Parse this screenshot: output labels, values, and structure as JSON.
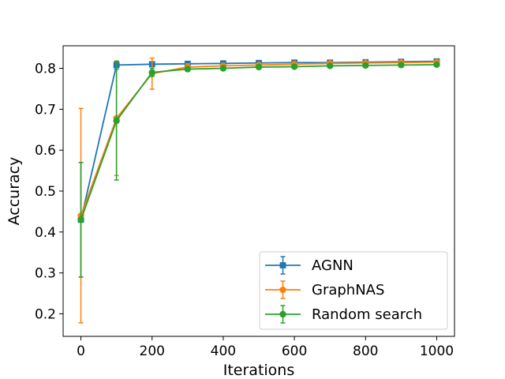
{
  "chart_data": {
    "type": "line",
    "title": "",
    "xlabel": "Iterations",
    "ylabel": "Accuracy",
    "xlim": [
      -50,
      1050
    ],
    "ylim": [
      0.145,
      0.855
    ],
    "xticks": [
      0,
      200,
      400,
      600,
      800,
      1000
    ],
    "yticks": [
      0.2,
      0.3,
      0.4,
      0.5,
      0.6,
      0.7,
      0.8
    ],
    "grid": false,
    "legend_position": "lower-right",
    "x": [
      0,
      100,
      200,
      300,
      400,
      500,
      600,
      700,
      800,
      900,
      1000
    ],
    "series": [
      {
        "name": "AGNN",
        "color": "#1f77b4",
        "marker": "square",
        "values": [
          0.43,
          0.808,
          0.81,
          0.811,
          0.812,
          0.813,
          0.814,
          0.814,
          0.815,
          0.816,
          0.817
        ],
        "errors": [
          0.14,
          0.01,
          0.004,
          0.004,
          0.004,
          0.004,
          0.004,
          0.004,
          0.004,
          0.004,
          0.004
        ]
      },
      {
        "name": "GraphNAS",
        "color": "#ff7f0e",
        "marker": "pentagon",
        "values": [
          0.44,
          0.678,
          0.787,
          0.803,
          0.806,
          0.808,
          0.81,
          0.812,
          0.813,
          0.814,
          0.815
        ],
        "errors": [
          0.262,
          0.14,
          0.038,
          0.008,
          0.006,
          0.005,
          0.005,
          0.004,
          0.004,
          0.004,
          0.004
        ]
      },
      {
        "name": "Random search",
        "color": "#2ca02c",
        "marker": "circle",
        "values": [
          0.43,
          0.672,
          0.79,
          0.798,
          0.8,
          0.803,
          0.804,
          0.806,
          0.807,
          0.808,
          0.809
        ],
        "errors": [
          0.14,
          0.145,
          0.01,
          0.005,
          0.005,
          0.005,
          0.004,
          0.004,
          0.004,
          0.004,
          0.004
        ]
      }
    ]
  }
}
